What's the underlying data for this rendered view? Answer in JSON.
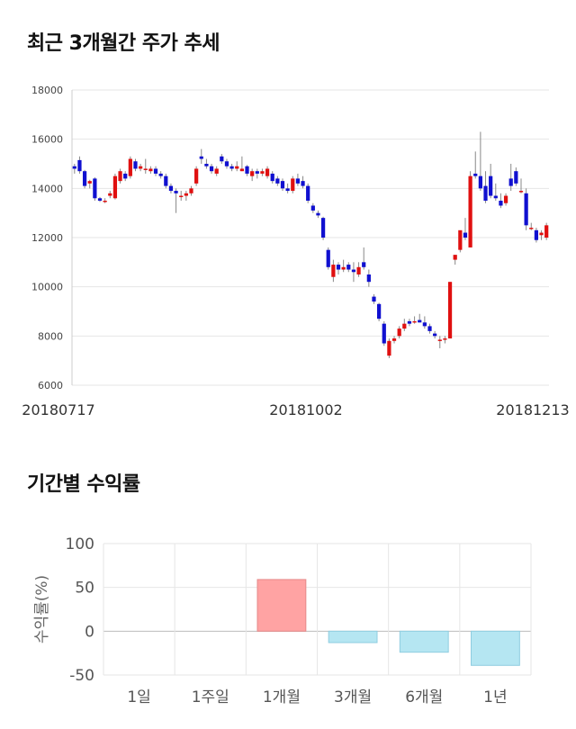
{
  "titles": {
    "price_trend": "최근 3개월간 주가 추세",
    "returns": "기간별 수익률"
  },
  "chart_data": [
    {
      "type": "candlestick",
      "ylim": [
        6000,
        18000
      ],
      "yticks": [
        "18000",
        "16000",
        "14000",
        "12000",
        "10000",
        "8000",
        "6000"
      ],
      "xtick_labels": [
        "20180717",
        "20181002",
        "20181213"
      ],
      "grid": true,
      "up_color": "#e01010",
      "down_color": "#1010d0",
      "ohlc": [
        [
          14900,
          15000,
          14600,
          14800
        ],
        [
          15150,
          15300,
          14600,
          14700
        ],
        [
          14700,
          14750,
          14000,
          14100
        ],
        [
          14200,
          14350,
          14000,
          14300
        ],
        [
          14400,
          14450,
          13500,
          13600
        ],
        [
          13600,
          13650,
          13450,
          13500
        ],
        [
          13500,
          13600,
          13400,
          13500
        ],
        [
          13700,
          13900,
          13600,
          13800
        ],
        [
          13600,
          14600,
          13550,
          14500
        ],
        [
          14300,
          14800,
          14200,
          14700
        ],
        [
          14600,
          14700,
          14300,
          14400
        ],
        [
          14500,
          15300,
          14400,
          15200
        ],
        [
          15100,
          15200,
          14700,
          14800
        ],
        [
          14800,
          15000,
          14700,
          14900
        ],
        [
          14800,
          15200,
          14600,
          14800
        ],
        [
          14700,
          14900,
          14600,
          14800
        ],
        [
          14800,
          14900,
          14500,
          14600
        ],
        [
          14600,
          14700,
          14400,
          14500
        ],
        [
          14500,
          14600,
          14000,
          14100
        ],
        [
          14100,
          14200,
          13800,
          13900
        ],
        [
          13900,
          14000,
          13000,
          13800
        ],
        [
          13700,
          13900,
          13500,
          13700
        ],
        [
          13700,
          13900,
          13500,
          13800
        ],
        [
          13800,
          14100,
          13700,
          14000
        ],
        [
          14200,
          14900,
          14100,
          14800
        ],
        [
          15300,
          15600,
          15000,
          15200
        ],
        [
          15000,
          15200,
          14800,
          14900
        ],
        [
          14900,
          15000,
          14600,
          14700
        ],
        [
          14600,
          14900,
          14500,
          14800
        ],
        [
          15300,
          15400,
          15000,
          15100
        ],
        [
          15100,
          15200,
          14800,
          14900
        ],
        [
          14900,
          15000,
          14700,
          14800
        ],
        [
          14800,
          15100,
          14700,
          14900
        ],
        [
          14700,
          15300,
          14700,
          14800
        ],
        [
          14900,
          14950,
          14500,
          14600
        ],
        [
          14500,
          14800,
          14300,
          14700
        ],
        [
          14700,
          14800,
          14400,
          14600
        ],
        [
          14600,
          14800,
          14500,
          14700
        ],
        [
          14500,
          14900,
          14400,
          14800
        ],
        [
          14600,
          14700,
          14200,
          14300
        ],
        [
          14400,
          14500,
          14100,
          14200
        ],
        [
          14300,
          14400,
          13900,
          14000
        ],
        [
          14000,
          14200,
          13800,
          13900
        ],
        [
          13900,
          14500,
          13800,
          14400
        ],
        [
          14400,
          14600,
          14100,
          14200
        ],
        [
          14300,
          14500,
          14000,
          14100
        ],
        [
          14100,
          14200,
          13400,
          13500
        ],
        [
          13300,
          13400,
          13000,
          13100
        ],
        [
          13000,
          13100,
          12800,
          12900
        ],
        [
          12800,
          12850,
          11900,
          12000
        ],
        [
          11500,
          11600,
          10700,
          10800
        ],
        [
          10400,
          11100,
          10200,
          10900
        ],
        [
          10900,
          11000,
          10500,
          10700
        ],
        [
          10700,
          11100,
          10600,
          10800
        ],
        [
          10900,
          11000,
          10600,
          10700
        ],
        [
          10700,
          11000,
          10200,
          10600
        ],
        [
          10500,
          11000,
          10400,
          10800
        ],
        [
          11000,
          11600,
          10700,
          10800
        ],
        [
          10500,
          10700,
          10000,
          10200
        ],
        [
          9600,
          9700,
          9300,
          9400
        ],
        [
          9300,
          9350,
          8600,
          8700
        ],
        [
          8500,
          8600,
          7600,
          7700
        ],
        [
          7200,
          7900,
          7100,
          7800
        ],
        [
          7800,
          8000,
          7700,
          7900
        ],
        [
          8000,
          8400,
          7900,
          8300
        ],
        [
          8300,
          8700,
          8200,
          8500
        ],
        [
          8600,
          8700,
          8400,
          8500
        ],
        [
          8600,
          8800,
          8500,
          8600
        ],
        [
          8650,
          8900,
          8550,
          8550
        ],
        [
          8550,
          8800,
          8300,
          8400
        ],
        [
          8400,
          8500,
          8100,
          8200
        ],
        [
          8100,
          8200,
          7900,
          8000
        ],
        [
          7800,
          8000,
          7500,
          7850
        ],
        [
          7850,
          8000,
          7700,
          7900
        ],
        [
          7900,
          10200,
          7900,
          10200
        ],
        [
          11100,
          11300,
          10900,
          11300
        ],
        [
          11500,
          12200,
          11400,
          12300
        ],
        [
          12200,
          12800,
          11900,
          12000
        ],
        [
          11600,
          14700,
          11600,
          14500
        ],
        [
          14600,
          15500,
          14400,
          14500
        ],
        [
          14500,
          16300,
          13900,
          14000
        ],
        [
          14100,
          14700,
          13400,
          13500
        ],
        [
          14500,
          15000,
          13600,
          13700
        ],
        [
          13700,
          14200,
          13500,
          13600
        ],
        [
          13500,
          13800,
          13200,
          13300
        ],
        [
          13400,
          13800,
          13300,
          13700
        ],
        [
          14400,
          15000,
          13900,
          14100
        ],
        [
          14700,
          14850,
          14100,
          14200
        ],
        [
          13900,
          14400,
          13800,
          13900
        ],
        [
          13800,
          14000,
          12300,
          12500
        ],
        [
          12400,
          12600,
          12300,
          12400
        ],
        [
          12300,
          12400,
          11800,
          11900
        ],
        [
          12100,
          12300,
          11900,
          12200
        ],
        [
          12000,
          12600,
          11900,
          12500
        ]
      ]
    },
    {
      "type": "bar",
      "categories": [
        "1일",
        "1주일",
        "1개월",
        "3개월",
        "6개월",
        "1년"
      ],
      "values": [
        0,
        0,
        59,
        -13,
        -24,
        -39
      ],
      "ylabel": "수익률(%)",
      "ylim": [
        -50,
        100
      ],
      "yticks": [
        "100",
        "50",
        "0",
        "-50"
      ],
      "colors": {
        "positive_fill": "#ffa3a3",
        "positive_stroke": "#e58a8a",
        "negative_fill": "#b5e6f2",
        "negative_stroke": "#8fcde0"
      }
    }
  ]
}
